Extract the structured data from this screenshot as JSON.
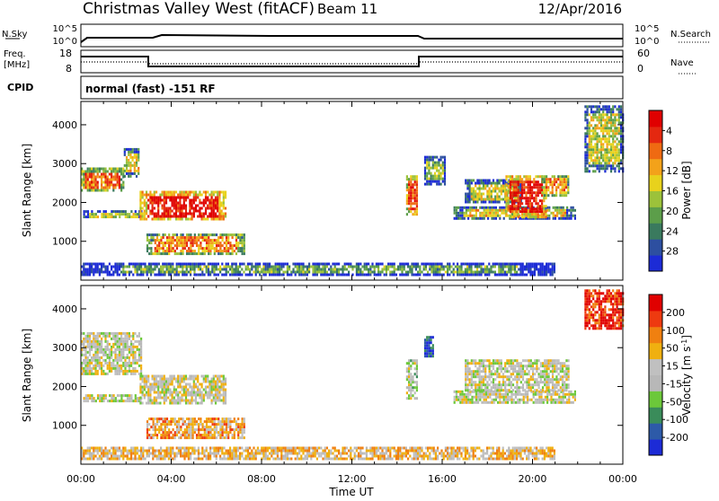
{
  "header": {
    "station": "Christmas Valley West (fitACF)",
    "beam": "Beam 11",
    "date": "12/Apr/2016"
  },
  "param_panel": {
    "nsky_label": "N.Sky",
    "nsearch_label": "N.Search",
    "nsky_ticks": [
      "10^5",
      "10^0"
    ],
    "nsearch_ticks": [
      "10^5",
      "10^0"
    ],
    "freq_label_1": "Freq.",
    "freq_label_2": "[MHz]",
    "freq_ticks": [
      "18",
      "8"
    ],
    "nave_label": "Nave",
    "nave_ticks": [
      "60",
      "0"
    ],
    "cpid_label": "CPID",
    "cpid_text": "normal (fast) -151 RF"
  },
  "chart_data": [
    {
      "type": "heatmap",
      "panel": "power",
      "x_unit": "hours UT",
      "x_range": [
        0,
        24
      ],
      "y_range": [
        0,
        4600
      ],
      "y_ticks": [
        1000,
        2000,
        3000,
        4000
      ],
      "ylabel": "Slant Range [km]",
      "colorbar_label": "Power [dB]",
      "colorbar_ticks": [
        "4",
        "8",
        "12",
        "16",
        "20",
        "24",
        "28"
      ],
      "colorbar_colors": [
        "#1c2bd6",
        "#2d4fa0",
        "#3a7a5e",
        "#5c9e4a",
        "#9cc23a",
        "#e8d21c",
        "#f3a21a",
        "#ef6a12",
        "#e42810",
        "#e00000"
      ],
      "regions": [
        {
          "t0": 0.0,
          "t1": 1.9,
          "r0": 2300,
          "r1": 2900,
          "level": 0.75
        },
        {
          "t0": 1.9,
          "t1": 2.6,
          "r0": 2700,
          "r1": 3400,
          "level": 0.55
        },
        {
          "t0": 0.1,
          "t1": 2.7,
          "r0": 1600,
          "r1": 1800,
          "level": 0.45
        },
        {
          "t0": 2.6,
          "t1": 6.4,
          "r0": 1550,
          "r1": 2300,
          "level": 0.95
        },
        {
          "t0": 2.9,
          "t1": 7.2,
          "r0": 700,
          "r1": 1200,
          "level": 0.7
        },
        {
          "t0": 14.4,
          "t1": 14.9,
          "r0": 1700,
          "r1": 2700,
          "level": 0.85
        },
        {
          "t0": 15.2,
          "t1": 16.1,
          "r0": 2500,
          "r1": 3200,
          "level": 0.4
        },
        {
          "t0": 16.5,
          "t1": 21.9,
          "r0": 1600,
          "r1": 1900,
          "level": 0.55
        },
        {
          "t0": 17.0,
          "t1": 19.5,
          "r0": 2000,
          "r1": 2600,
          "level": 0.5
        },
        {
          "t0": 18.8,
          "t1": 20.6,
          "r0": 1650,
          "r1": 2700,
          "level": 0.92
        },
        {
          "t0": 20.4,
          "t1": 21.6,
          "r0": 2200,
          "r1": 2700,
          "level": 0.7
        },
        {
          "t0": 22.3,
          "t1": 24.0,
          "r0": 2800,
          "r1": 4500,
          "level": 0.5
        },
        {
          "t0": 0.0,
          "t1": 21.0,
          "r0": 150,
          "r1": 450,
          "level": 0.35
        }
      ]
    },
    {
      "type": "heatmap",
      "panel": "velocity",
      "x_unit": "hours UT",
      "x_range": [
        0,
        24
      ],
      "y_range": [
        0,
        4600
      ],
      "y_ticks": [
        1000,
        2000,
        3000,
        4000
      ],
      "ylabel": "Slant Range [km]",
      "xlabel": "Time UT",
      "x_ticks": [
        "00:00",
        "04:00",
        "08:00",
        "12:00",
        "16:00",
        "20:00",
        "00:00"
      ],
      "colorbar_label": "Velocity [m s",
      "colorbar_label_sup": "-1",
      "colorbar_label_end": "]",
      "colorbar_ticks": [
        "200",
        "100",
        "50",
        "15",
        "-15",
        "-50",
        "-100",
        "-200"
      ],
      "colorbar_colors": [
        "#1c2bd6",
        "#2d5aa8",
        "#3a8c5a",
        "#6cc83a",
        "#b8b8b8",
        "#c0c0c0",
        "#f0b010",
        "#f08010",
        "#ee3a10",
        "#e00000"
      ],
      "regions": [
        {
          "t0": 0.0,
          "t1": 2.7,
          "r0": 2300,
          "r1": 3400,
          "level": 0.5
        },
        {
          "t0": 0.1,
          "t1": 2.7,
          "r0": 1600,
          "r1": 1800,
          "level": 0.5
        },
        {
          "t0": 2.6,
          "t1": 6.4,
          "r0": 1550,
          "r1": 2300,
          "level": 0.52
        },
        {
          "t0": 2.9,
          "t1": 7.2,
          "r0": 700,
          "r1": 1200,
          "level": 0.68
        },
        {
          "t0": 14.4,
          "t1": 14.9,
          "r0": 1700,
          "r1": 2700,
          "level": 0.45
        },
        {
          "t0": 15.2,
          "t1": 15.6,
          "r0": 2800,
          "r1": 3300,
          "level": 0.1
        },
        {
          "t0": 16.5,
          "t1": 21.9,
          "r0": 1600,
          "r1": 1900,
          "level": 0.5
        },
        {
          "t0": 17.0,
          "t1": 21.6,
          "r0": 1900,
          "r1": 2700,
          "level": 0.5
        },
        {
          "t0": 22.3,
          "t1": 24.0,
          "r0": 3500,
          "r1": 4500,
          "level": 0.9
        },
        {
          "t0": 0.0,
          "t1": 21.0,
          "r0": 150,
          "r1": 450,
          "level": 0.62
        }
      ]
    }
  ]
}
